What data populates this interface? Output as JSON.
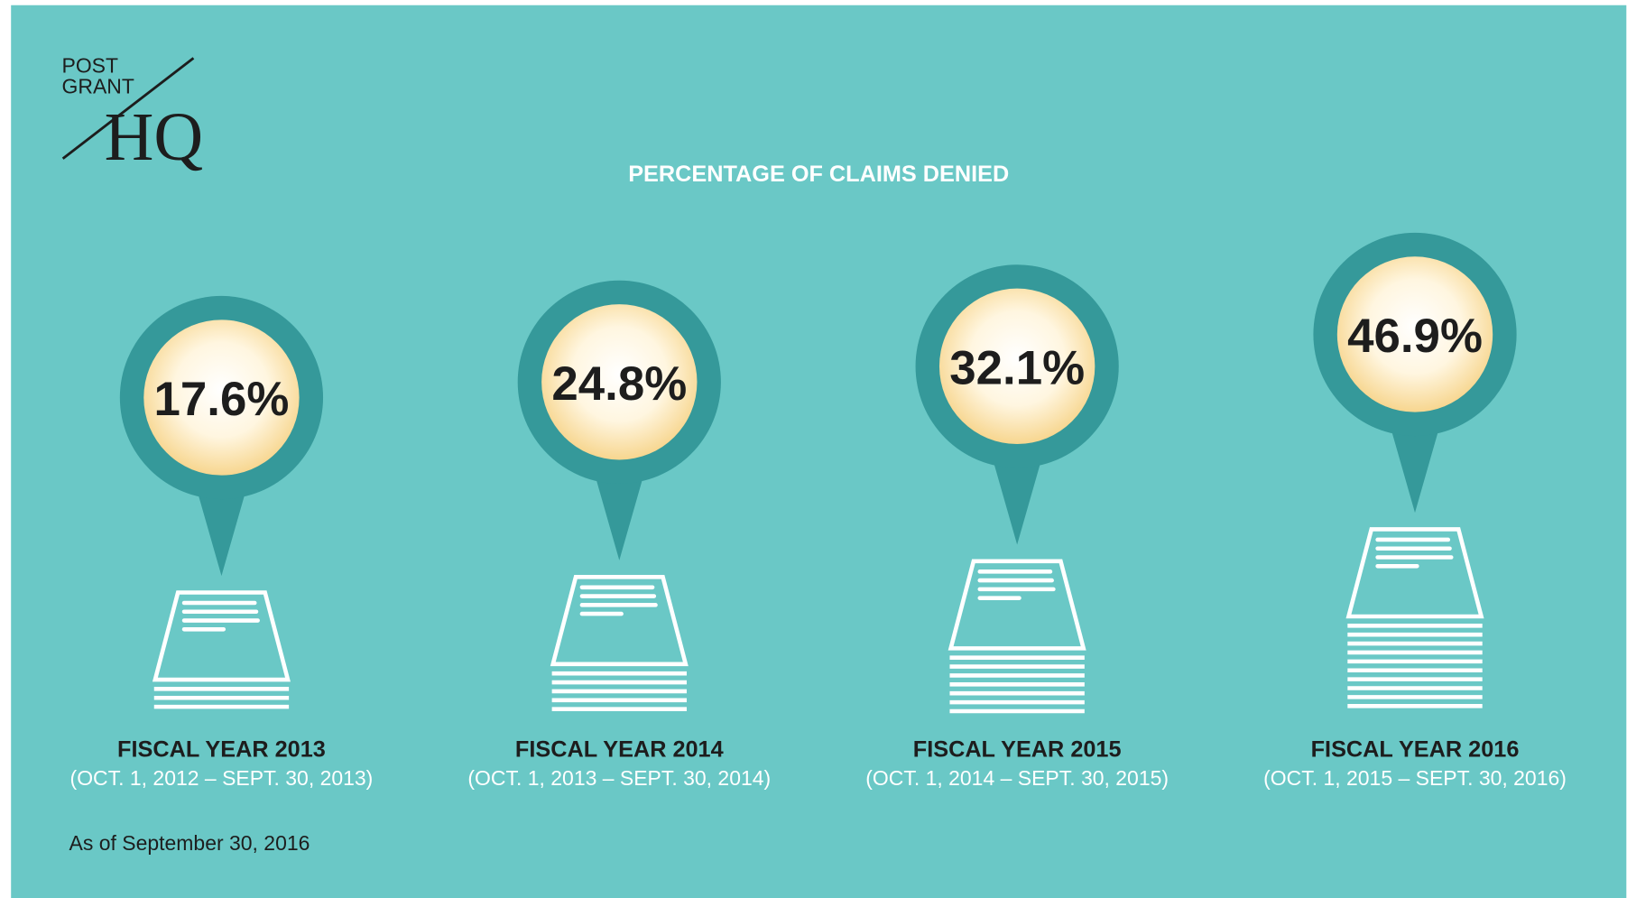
{
  "chart_data": {
    "type": "pictogram",
    "title": "PERCENTAGE OF CLAIMS DENIED",
    "logo": [
      "POST",
      "GRANT",
      "HQ"
    ],
    "categories": [
      "FISCAL YEAR 2013",
      "FISCAL YEAR 2014",
      "FISCAL YEAR 2015",
      "FISCAL YEAR 2016"
    ],
    "periods": [
      "(OCT. 1, 2012 – SEPT. 30, 2013)",
      "(OCT. 1, 2013 – SEPT. 30, 2014)",
      "(OCT. 1, 2014 – SEPT. 30, 2015)",
      "(OCT. 1, 2015 – SEPT. 30, 2016)"
    ],
    "values": [
      17.6,
      24.8,
      32.1,
      46.9
    ],
    "value_labels": [
      "17.6%",
      "24.8%",
      "32.1%",
      "46.9%"
    ],
    "color": "#35999a",
    "note": "As of September 30, 2016"
  }
}
